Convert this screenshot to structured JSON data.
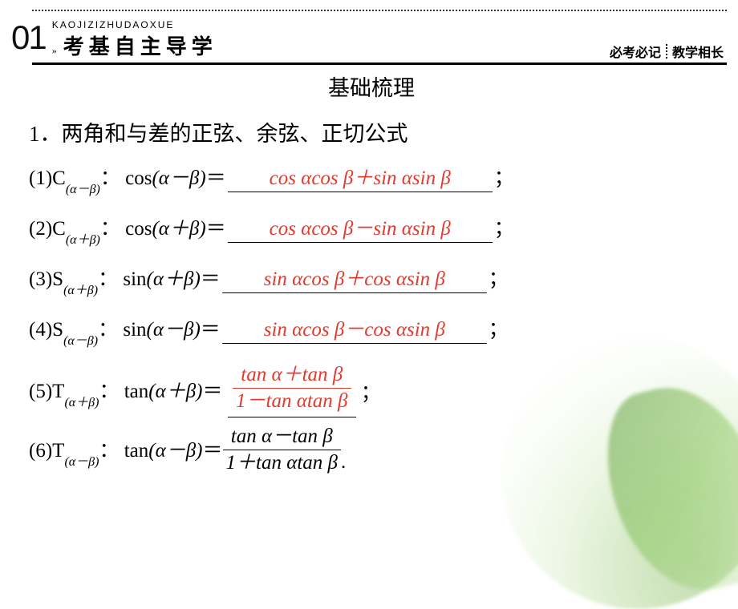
{
  "colors": {
    "answer": "#e23a2f",
    "text": "#000000",
    "background": "#ffffff",
    "leaf_accent": "#89c35c"
  },
  "header": {
    "section_number": "01",
    "pinyin": "KAOJIZIZHUDAOXUE",
    "arrow": "»",
    "title_cn": "考基自主导学",
    "right_a": "必考必记",
    "right_b": "教学相长"
  },
  "section_title": "基础梳理",
  "heading1": "1．两角和与差的正弦、余弦、正切公式",
  "items": [
    {
      "idx": "(1)",
      "sym_letter": "C",
      "sub_html": "(α－β)",
      "func": "cos",
      "arg": "(α－β)",
      "answer_html": "cos αcos β＋sin αsin β"
    },
    {
      "idx": "(2)",
      "sym_letter": "C",
      "sub_html": "(α＋β)",
      "func": "cos",
      "arg": "(α＋β)",
      "answer_html": "cos αcos β－sin αsin β"
    },
    {
      "idx": "(3)",
      "sym_letter": "S",
      "sub_html": "(α＋β)",
      "func": "sin",
      "arg": "(α＋β)",
      "answer_html": "sin αcos β＋cos αsin β"
    },
    {
      "idx": "(4)",
      "sym_letter": "S",
      "sub_html": "(α－β)",
      "func": "sin",
      "arg": "(α－β)",
      "answer_html": "sin αcos β－cos αsin β"
    }
  ],
  "item5": {
    "idx": "(5)",
    "sym_letter": "T",
    "sub_html": "(α＋β)",
    "func": "tan",
    "arg": "(α＋β)",
    "frac_top": "tan α＋tan β",
    "frac_bot": "1－tan αtan β"
  },
  "item6": {
    "idx": "(6)",
    "sym_letter": "T",
    "sub_html": "(α－β)",
    "func": "tan",
    "arg": "(α－β)",
    "frac_top": "tan α－tan β",
    "frac_bot": "1＋tan αtan β"
  },
  "punct": {
    "colon": "：",
    "equals": "＝",
    "semicolon": "；",
    "period": "."
  }
}
